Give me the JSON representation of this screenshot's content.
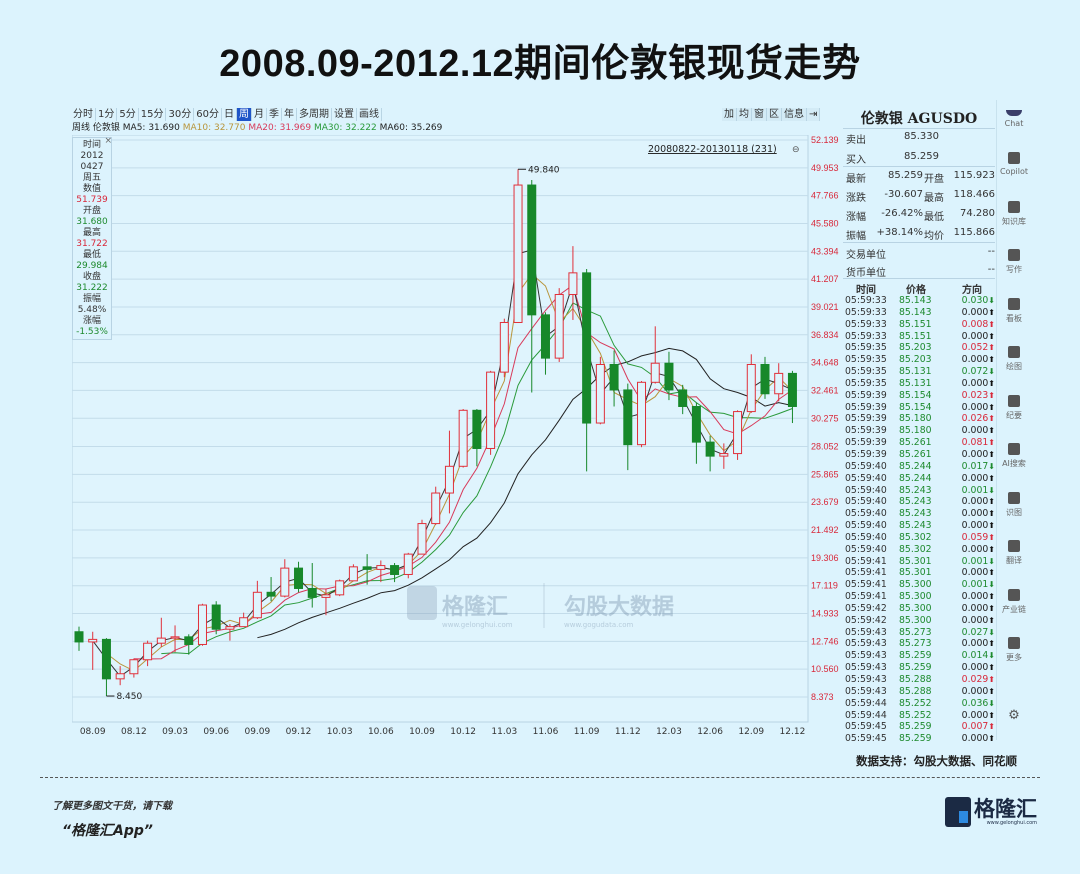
{
  "title": "2008.09-2012.12期间伦敦银现货走势",
  "toolbar": {
    "tabs": [
      "分时",
      "1分",
      "5分",
      "15分",
      "30分",
      "60分",
      "日",
      "周",
      "月",
      "季",
      "年",
      "多周期",
      "设置",
      "画线"
    ],
    "active": "周",
    "right_tools": [
      "加",
      "均",
      "窗",
      "区",
      "信息",
      "⇥"
    ]
  },
  "ma_line": {
    "period": "周线",
    "name": "伦敦银",
    "ma5": "MA5: 31.690",
    "ma10": "MA10: 32.770",
    "ma20": "MA20: 31.969",
    "ma30": "MA30: 32.222",
    "ma60": "MA60: 35.269"
  },
  "info_box": {
    "close_icon": "×",
    "items": [
      {
        "text": "时间",
        "color": "dark"
      },
      {
        "text": "2012",
        "color": "dark"
      },
      {
        "text": "0427",
        "color": "dark"
      },
      {
        "text": "周五",
        "color": "dark"
      },
      {
        "text": "数值",
        "color": "dark"
      },
      {
        "text": "51.739",
        "color": "red"
      },
      {
        "text": "开盘",
        "color": "dark"
      },
      {
        "text": "31.680",
        "color": "green"
      },
      {
        "text": "最高",
        "color": "dark"
      },
      {
        "text": "31.722",
        "color": "red"
      },
      {
        "text": "最低",
        "color": "dark"
      },
      {
        "text": "29.984",
        "color": "green"
      },
      {
        "text": "收盘",
        "color": "dark"
      },
      {
        "text": "31.222",
        "color": "green"
      },
      {
        "text": "振幅",
        "color": "dark"
      },
      {
        "text": "5.48%",
        "color": "dark"
      },
      {
        "text": "涨幅",
        "color": "dark"
      },
      {
        "text": "-1.53%",
        "color": "green"
      }
    ]
  },
  "range_label": "20080822-20130118 (231)",
  "watermark": {
    "left": "格隆汇",
    "left_url": "www.gelonghui.com",
    "right": "勾股大数据",
    "right_url": "www.gogudata.com"
  },
  "colors": {
    "up": "#e0303a",
    "down": "#17882a",
    "ma5": "#333333",
    "ma10": "#b8953b",
    "ma20": "#d83a5a",
    "ma30": "#2a9a3a",
    "ma60": "#222222",
    "axis_label": "#d8283a"
  },
  "chart_data": {
    "type": "candlestick",
    "ylim": [
      8.373,
      52.139
    ],
    "grid": true,
    "yticks": [
      "52.139",
      "49.953",
      "47.766",
      "45.580",
      "43.394",
      "41.207",
      "39.021",
      "36.834",
      "34.648",
      "32.461",
      "30.275",
      "28.052",
      "25.865",
      "23.679",
      "21.492",
      "19.306",
      "17.119",
      "14.933",
      "12.746",
      "10.560",
      "8.373"
    ],
    "xticks": [
      "08.09",
      "08.12",
      "09.03",
      "09.06",
      "09.09",
      "09.12",
      "10.03",
      "10.06",
      "10.09",
      "10.12",
      "11.03",
      "11.06",
      "11.09",
      "11.12",
      "12.03",
      "12.06",
      "12.09",
      "12.12"
    ],
    "annotations": {
      "high": "49.840",
      "low": "8.450"
    },
    "candles": [
      [
        "08.08",
        13.5,
        13.9,
        12.0,
        12.7
      ],
      [
        "08.09",
        12.7,
        13.5,
        10.5,
        12.9
      ],
      [
        "08.10",
        12.9,
        13.0,
        8.45,
        9.8
      ],
      [
        "08.11",
        9.8,
        10.8,
        9.3,
        10.2
      ],
      [
        "08.12",
        10.2,
        11.4,
        9.9,
        11.3
      ],
      [
        "09.01",
        11.3,
        12.8,
        10.8,
        12.6
      ],
      [
        "09.02",
        12.6,
        14.6,
        12.3,
        13.0
      ],
      [
        "09.03",
        13.0,
        14.0,
        11.9,
        13.1
      ],
      [
        "09.04",
        13.1,
        13.3,
        11.7,
        12.5
      ],
      [
        "09.05",
        12.5,
        15.7,
        12.4,
        15.6
      ],
      [
        "09.06",
        15.6,
        15.9,
        13.3,
        13.7
      ],
      [
        "09.07",
        13.7,
        14.1,
        12.8,
        13.9
      ],
      [
        "09.08",
        13.9,
        15.0,
        13.9,
        14.6
      ],
      [
        "09.09",
        14.6,
        17.5,
        14.5,
        16.6
      ],
      [
        "09.10",
        16.6,
        17.8,
        15.9,
        16.3
      ],
      [
        "09.11",
        16.3,
        19.2,
        16.2,
        18.5
      ],
      [
        "09.12",
        18.5,
        19.0,
        16.6,
        16.9
      ],
      [
        "10.01",
        16.9,
        18.9,
        15.4,
        16.2
      ],
      [
        "10.02",
        16.2,
        16.9,
        14.8,
        16.4
      ],
      [
        "10.03",
        16.4,
        17.6,
        16.3,
        17.5
      ],
      [
        "10.04",
        17.5,
        18.8,
        17.5,
        18.6
      ],
      [
        "10.05",
        18.6,
        19.6,
        17.2,
        18.4
      ],
      [
        "10.06",
        18.4,
        19.1,
        17.4,
        18.7
      ],
      [
        "10.07",
        18.7,
        18.9,
        17.4,
        18.0
      ],
      [
        "10.08",
        18.0,
        19.7,
        17.7,
        19.6
      ],
      [
        "10.09",
        19.6,
        22.3,
        19.6,
        22.0
      ],
      [
        "10.10",
        22.0,
        24.9,
        21.9,
        24.4
      ],
      [
        "10.11",
        24.4,
        29.3,
        22.8,
        26.5
      ],
      [
        "10.12",
        26.5,
        31.0,
        26.4,
        30.9
      ],
      [
        "11.01",
        30.9,
        31.0,
        26.5,
        27.9
      ],
      [
        "11.02",
        27.9,
        34.0,
        27.4,
        33.9
      ],
      [
        "11.03",
        33.9,
        38.1,
        33.5,
        37.8
      ],
      [
        "11.04",
        37.8,
        49.84,
        37.8,
        48.6
      ],
      [
        "11.05",
        48.6,
        49.0,
        32.3,
        38.4
      ],
      [
        "11.06",
        38.4,
        38.6,
        33.7,
        35.0
      ],
      [
        "11.07",
        35.0,
        40.5,
        34.7,
        40.0
      ],
      [
        "11.08",
        40.0,
        43.8,
        38.0,
        41.7
      ],
      [
        "11.09",
        41.7,
        42.0,
        26.1,
        29.9
      ],
      [
        "11.10",
        29.9,
        35.1,
        29.8,
        34.5
      ],
      [
        "11.11",
        34.5,
        35.6,
        31.2,
        32.5
      ],
      [
        "11.12",
        32.5,
        33.0,
        26.2,
        28.2
      ],
      [
        "12.01",
        28.2,
        33.2,
        28.0,
        33.1
      ],
      [
        "12.02",
        33.1,
        37.5,
        33.0,
        34.6
      ],
      [
        "12.03",
        34.6,
        35.5,
        31.7,
        32.5
      ],
      [
        "12.04",
        32.5,
        32.9,
        30.6,
        31.2
      ],
      [
        "12.05",
        31.2,
        31.5,
        26.7,
        28.4
      ],
      [
        "12.06",
        28.4,
        28.9,
        26.1,
        27.3
      ],
      [
        "12.07",
        27.3,
        28.3,
        26.3,
        27.5
      ],
      [
        "12.08",
        27.5,
        30.9,
        27.0,
        30.8
      ],
      [
        "12.09",
        30.8,
        35.3,
        30.7,
        34.5
      ],
      [
        "12.10",
        34.5,
        35.1,
        31.8,
        32.2
      ],
      [
        "12.11",
        32.2,
        34.6,
        31.6,
        33.8
      ],
      [
        "12.12",
        33.8,
        34.0,
        29.9,
        31.2
      ]
    ]
  },
  "quote": {
    "title": "伦敦银 AGUSDO",
    "sell_label": "卖出",
    "sell": "85.330",
    "buy_label": "买入",
    "buy": "85.259",
    "latest_label": "最新",
    "latest": "85.259",
    "open_label": "开盘",
    "open": "115.923",
    "change_label": "涨跌",
    "change": "-30.607",
    "high_label": "最高",
    "high": "118.466",
    "pct_label": "涨幅",
    "pct": "-26.42%",
    "low_label": "最低",
    "low": "74.280",
    "amp_label": "振幅",
    "amp": "+38.14%",
    "avg_label": "均价",
    "avg": "115.866",
    "unit_label": "交易单位",
    "unit": "--",
    "currency_label": "货币单位",
    "currency": "--",
    "cols": [
      "时间",
      "价格",
      "方向"
    ]
  },
  "ticks": [
    [
      "05:59:33",
      "85.143",
      "0.030",
      "down"
    ],
    [
      "05:59:33",
      "85.143",
      "0.000",
      "flat"
    ],
    [
      "05:59:33",
      "85.151",
      "0.008",
      "up"
    ],
    [
      "05:59:33",
      "85.151",
      "0.000",
      "flat"
    ],
    [
      "05:59:35",
      "85.203",
      "0.052",
      "up"
    ],
    [
      "05:59:35",
      "85.203",
      "0.000",
      "flat"
    ],
    [
      "05:59:35",
      "85.131",
      "0.072",
      "down"
    ],
    [
      "05:59:35",
      "85.131",
      "0.000",
      "flat"
    ],
    [
      "05:59:39",
      "85.154",
      "0.023",
      "up"
    ],
    [
      "05:59:39",
      "85.154",
      "0.000",
      "flat"
    ],
    [
      "05:59:39",
      "85.180",
      "0.026",
      "up"
    ],
    [
      "05:59:39",
      "85.180",
      "0.000",
      "flat"
    ],
    [
      "05:59:39",
      "85.261",
      "0.081",
      "up"
    ],
    [
      "05:59:39",
      "85.261",
      "0.000",
      "flat"
    ],
    [
      "05:59:40",
      "85.244",
      "0.017",
      "down"
    ],
    [
      "05:59:40",
      "85.244",
      "0.000",
      "flat"
    ],
    [
      "05:59:40",
      "85.243",
      "0.001",
      "down"
    ],
    [
      "05:59:40",
      "85.243",
      "0.000",
      "flat"
    ],
    [
      "05:59:40",
      "85.243",
      "0.000",
      "flat"
    ],
    [
      "05:59:40",
      "85.243",
      "0.000",
      "flat"
    ],
    [
      "05:59:40",
      "85.302",
      "0.059",
      "up"
    ],
    [
      "05:59:40",
      "85.302",
      "0.000",
      "flat"
    ],
    [
      "05:59:41",
      "85.301",
      "0.001",
      "down"
    ],
    [
      "05:59:41",
      "85.301",
      "0.000",
      "flat"
    ],
    [
      "05:59:41",
      "85.300",
      "0.001",
      "down"
    ],
    [
      "05:59:41",
      "85.300",
      "0.000",
      "flat"
    ],
    [
      "05:59:42",
      "85.300",
      "0.000",
      "flat"
    ],
    [
      "05:59:42",
      "85.300",
      "0.000",
      "flat"
    ],
    [
      "05:59:43",
      "85.273",
      "0.027",
      "down"
    ],
    [
      "05:59:43",
      "85.273",
      "0.000",
      "flat"
    ],
    [
      "05:59:43",
      "85.259",
      "0.014",
      "down"
    ],
    [
      "05:59:43",
      "85.259",
      "0.000",
      "flat"
    ],
    [
      "05:59:43",
      "85.288",
      "0.029",
      "up"
    ],
    [
      "05:59:43",
      "85.288",
      "0.000",
      "flat"
    ],
    [
      "05:59:44",
      "85.252",
      "0.036",
      "down"
    ],
    [
      "05:59:44",
      "85.252",
      "0.000",
      "flat"
    ],
    [
      "05:59:45",
      "85.259",
      "0.007",
      "up"
    ],
    [
      "05:59:45",
      "85.259",
      "0.000",
      "flat"
    ]
  ],
  "sidebar": [
    "Chat",
    "Copilot",
    "知识库",
    "写作",
    "看板",
    "绘图",
    "纪要",
    "AI搜索",
    "识图",
    "翻译",
    "产业链",
    "更多"
  ],
  "footer": {
    "source": "数据支持：勾股大数据、同花顺",
    "more": "了解更多图文干货，请下载",
    "app": "“格隆汇App”",
    "logo": "格隆汇",
    "logo_url": "www.gelonghui.com"
  }
}
